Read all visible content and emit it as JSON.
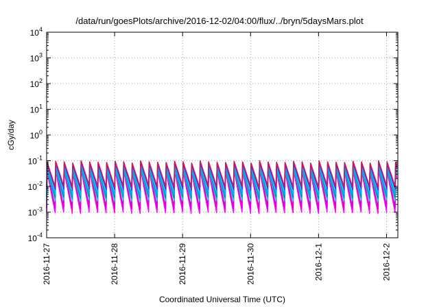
{
  "chart_data": {
    "type": "line",
    "title": "/data/run/goesPlots/archive/2016-12-02/04:00/flux/../bryn/5daysMars.plot",
    "xlabel": "Coordinated Universal Time (UTC)",
    "ylabel": "cGy/day",
    "yscale": "log",
    "ylim_exponents": [
      -4,
      4
    ],
    "y_ticks": [
      {
        "base": "10",
        "exp": "-4"
      },
      {
        "base": "10",
        "exp": "-3"
      },
      {
        "base": "10",
        "exp": "-2"
      },
      {
        "base": "10",
        "exp": "-1"
      },
      {
        "base": "10",
        "exp": "0"
      },
      {
        "base": "10",
        "exp": "1"
      },
      {
        "base": "10",
        "exp": "2"
      },
      {
        "base": "10",
        "exp": "3"
      },
      {
        "base": "10",
        "exp": "4"
      }
    ],
    "x_start": "2016-11-27T00:00",
    "x_end": "2016-12-02T04:00",
    "x_ticks": [
      "2016-11-27",
      "2016-11-28",
      "2016-11-29",
      "2016-11-30",
      "2016-12-1",
      "2016-12-2"
    ],
    "x_tick_days": [
      0,
      1,
      2,
      3,
      4,
      5
    ],
    "x_end_day": 5.1667,
    "grid": true,
    "pulse_period_hours": 3,
    "series": [
      {
        "color": "#ff00ff",
        "peak": 0.04,
        "trough": 0.001
      },
      {
        "color": "#d400d4",
        "peak": 0.05,
        "trough": 0.0015
      },
      {
        "color": "#00c8c8",
        "peak": 0.045,
        "trough": 0.003
      },
      {
        "color": "#009090",
        "peak": 0.055,
        "trough": 0.004
      },
      {
        "color": "#00b0ff",
        "peak": 0.06,
        "trough": 0.005
      },
      {
        "color": "#1e3cff",
        "peak": 0.08,
        "trough": 0.008
      },
      {
        "color": "#d2155a",
        "peak": 0.09,
        "trough": 0.01
      }
    ]
  }
}
